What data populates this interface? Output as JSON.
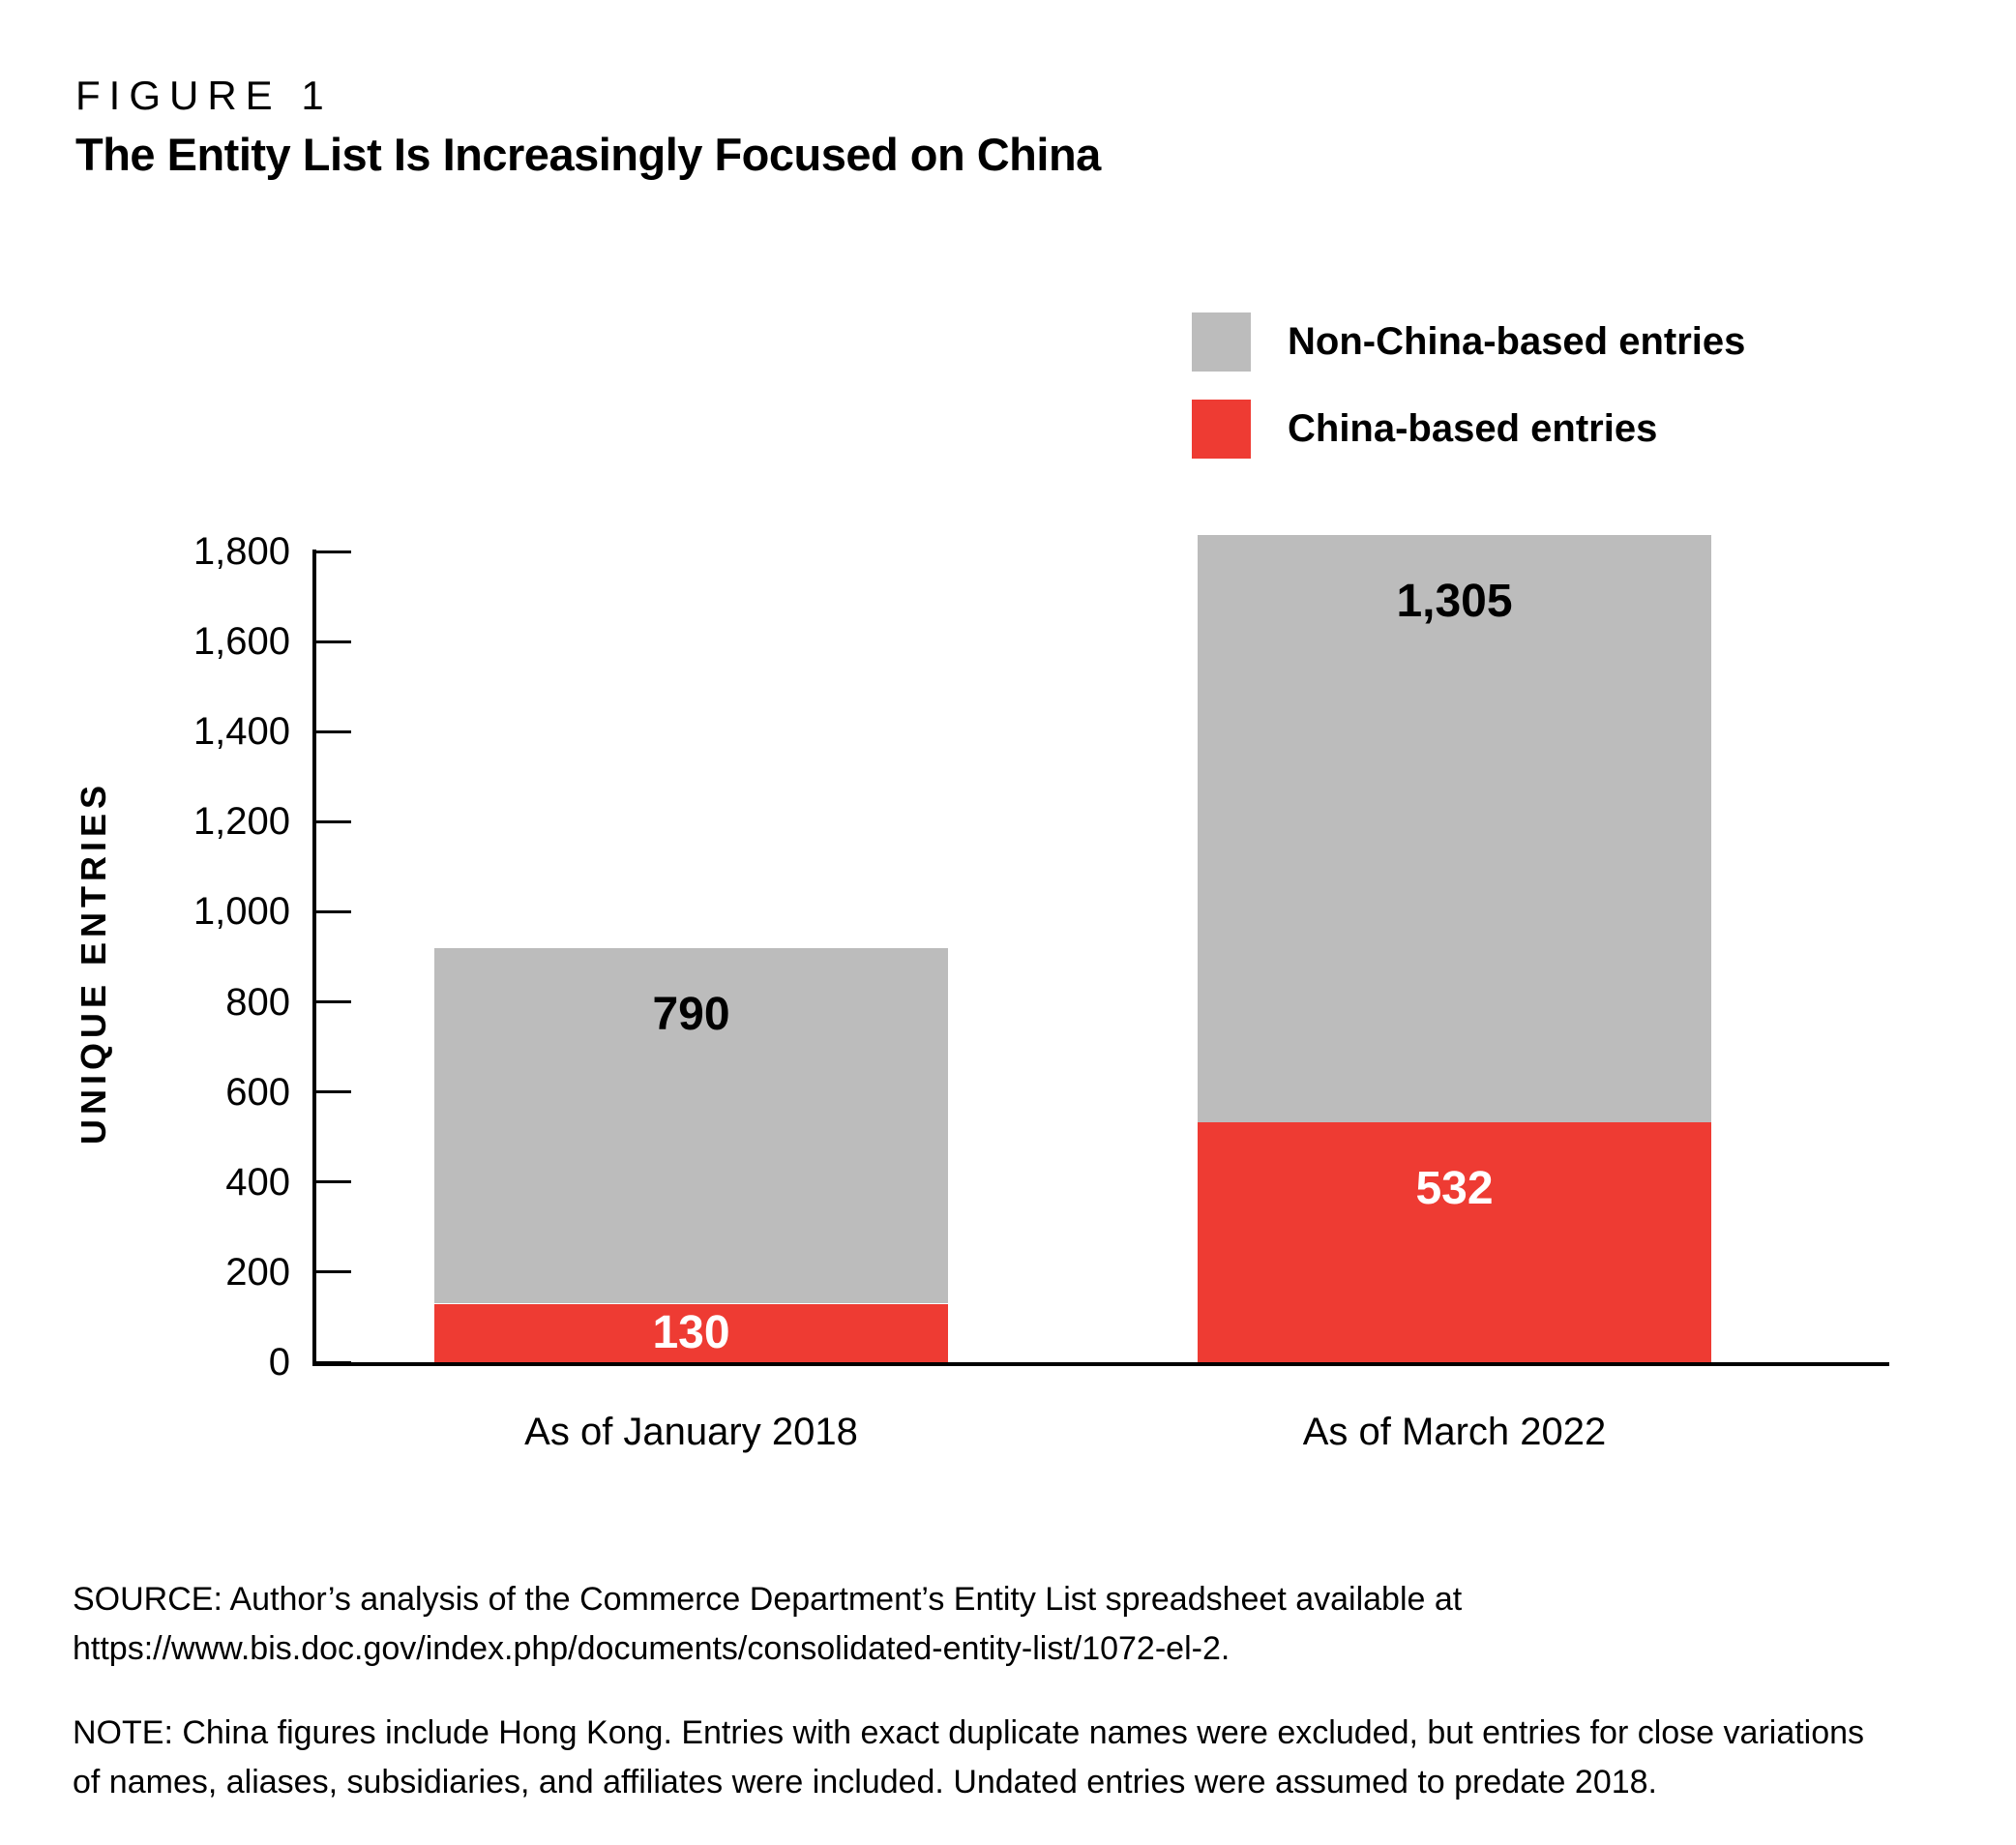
{
  "figure_label": "FIGURE 1",
  "title": "The Entity List Is Increasingly Focused on China",
  "legend": {
    "items": [
      {
        "label": "Non-China-based entries",
        "color": "#bcbcbc"
      },
      {
        "label": "China-based entries",
        "color": "#ee3b33"
      }
    ]
  },
  "chart_data": {
    "type": "bar",
    "stacked": true,
    "title": "The Entity List Is Increasingly Focused on China",
    "categories": [
      "As of January 2018",
      "As of March 2022"
    ],
    "series": [
      {
        "name": "China-based entries",
        "color": "#ee3b33",
        "values": [
          130,
          532
        ],
        "value_labels": [
          "130",
          "532"
        ],
        "value_label_color": "#ffffff"
      },
      {
        "name": "Non-China-based entries",
        "color": "#bcbcbc",
        "values": [
          790,
          1305
        ],
        "value_labels": [
          "790",
          "1,305"
        ],
        "value_label_color": "#000000"
      }
    ],
    "totals": [
      920,
      1837
    ],
    "ylabel": "UNIQUE ENTRIES",
    "xlabel": "",
    "ylim": [
      0,
      1800
    ],
    "ytick_interval": 200,
    "ytick_labels": [
      "0",
      "200",
      "400",
      "600",
      "800",
      "1,000",
      "1,200",
      "1,400",
      "1,600",
      "1,800"
    ],
    "grid": false,
    "legend_position": "top-right"
  },
  "source_lines": [
    "SOURCE: Author’s analysis of the Commerce Department’s Entity List spreadsheet available at",
    "https://www.bis.doc.gov/index.php/documents/consolidated-entity-list/1072-el-2."
  ],
  "note_lines": [
    "NOTE: China figures include Hong Kong. Entries with exact duplicate names were excluded, but entries for close variations",
    "of names, aliases, subsidiaries, and affiliates were included. Undated entries were assumed to predate 2018."
  ]
}
